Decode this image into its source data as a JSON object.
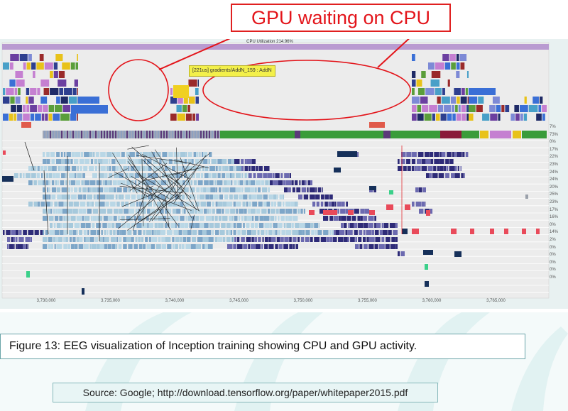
{
  "slide": {
    "callout": "GPU waiting on CPU",
    "caption": "Figure 13: EEG visualization of Inception training showing CPU and GPU activity.",
    "source": "Source: Google; http://download.tensorflow.org/paper/whitepaper2015.pdf"
  },
  "viz": {
    "utilization_title": "CPU Utilization 214.96%",
    "tooltip": "[221us] gradients/AddN_159 : AddN",
    "x_ticks": [
      "3,730,000",
      "3,735,000",
      "3,740,000",
      "3,745,000",
      "3,750,000",
      "3,755,000",
      "3,760,000",
      "3,765,000"
    ],
    "row_percents": [
      "7%",
      "73%",
      "0%",
      "17%",
      "22%",
      "23%",
      "24%",
      "24%",
      "20%",
      "25%",
      "23%",
      "17%",
      "16%",
      "0%",
      "14%",
      "2%",
      "0%",
      "0%",
      "0%",
      "0%",
      "0%"
    ]
  },
  "colors": {
    "annotation_red": "#e3141a",
    "utilization_bar": "#b99bd1",
    "stream_green": "#3a9c3a",
    "tooltip_yellow": "#f3f04a",
    "caption_border": "#6aa4a8"
  }
}
